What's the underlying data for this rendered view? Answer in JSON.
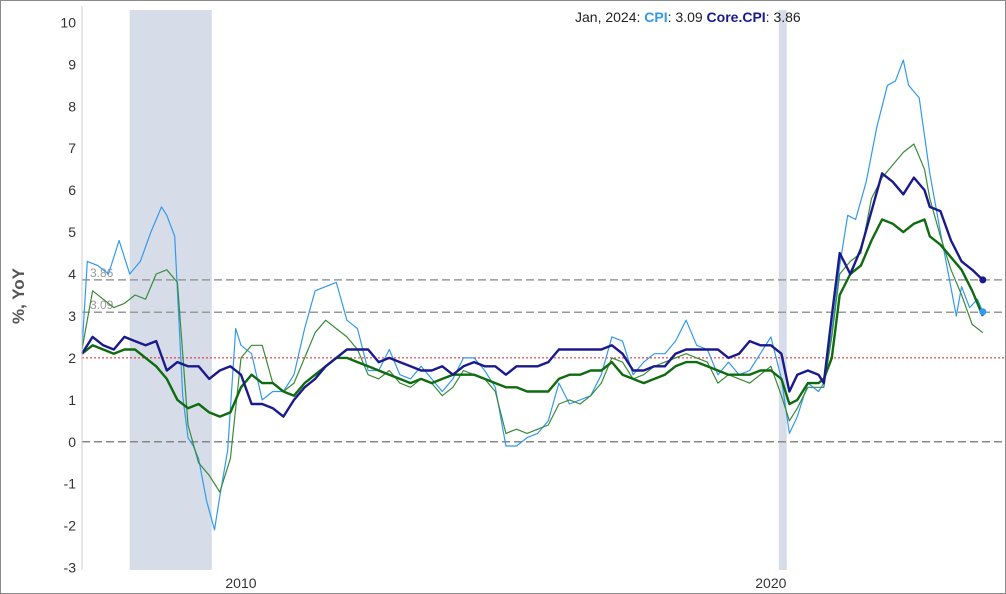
{
  "readout": {
    "date": "Jan, 2024",
    "cpi_name": "CPI",
    "cpi_value": "3.09",
    "core_name": "Core.CPI",
    "core_value": "3.86"
  },
  "colors": {
    "cpi": "#3399ee",
    "core_cpi": "#1a1a8c",
    "series3": "#3a8a3a",
    "series4": "#0f6b0f",
    "recession": "#d6dde8",
    "target": "#dd2222",
    "reference": "#999999"
  },
  "chart_data": {
    "type": "line",
    "title": "",
    "xlabel": "",
    "ylabel": "%, YoY",
    "xlim": [
      2007.0,
      2024.4
    ],
    "ylim": [
      -3.2,
      10.2
    ],
    "yticks": [
      "-3",
      "-2",
      "-1",
      "0",
      "1",
      "2",
      "3",
      "4",
      "5",
      "6",
      "7",
      "8",
      "9",
      "10"
    ],
    "xticks": [
      {
        "value": 2010,
        "label": "2010"
      },
      {
        "value": 2020,
        "label": "2020"
      }
    ],
    "recessions": [
      [
        2007.9,
        2009.45
      ],
      [
        2020.15,
        2020.3
      ]
    ],
    "target_line": 2,
    "reference_lines": [
      {
        "value": 3.86,
        "label": "3.86"
      },
      {
        "value": 3.09,
        "label": "3.09"
      }
    ],
    "series": [
      {
        "name": "CPI",
        "x": [
          2007.0,
          2007.1,
          2007.3,
          2007.5,
          2007.7,
          2007.9,
          2008.1,
          2008.3,
          2008.5,
          2008.6,
          2008.75,
          2008.9,
          2009.0,
          2009.1,
          2009.2,
          2009.35,
          2009.5,
          2009.6,
          2009.75,
          2009.9,
          2010.0,
          2010.2,
          2010.4,
          2010.6,
          2010.8,
          2011.0,
          2011.2,
          2011.4,
          2011.6,
          2011.8,
          2012.0,
          2012.2,
          2012.4,
          2012.6,
          2012.8,
          2013.0,
          2013.2,
          2013.4,
          2013.6,
          2013.8,
          2014.0,
          2014.2,
          2014.4,
          2014.6,
          2014.8,
          2015.0,
          2015.2,
          2015.4,
          2015.6,
          2015.8,
          2016.0,
          2016.2,
          2016.4,
          2016.6,
          2016.8,
          2017.0,
          2017.2,
          2017.4,
          2017.6,
          2017.8,
          2018.0,
          2018.2,
          2018.4,
          2018.6,
          2018.8,
          2019.0,
          2019.2,
          2019.4,
          2019.6,
          2019.8,
          2020.0,
          2020.2,
          2020.35,
          2020.5,
          2020.7,
          2020.9,
          2021.0,
          2021.15,
          2021.3,
          2021.45,
          2021.6,
          2021.8,
          2022.0,
          2022.2,
          2022.35,
          2022.5,
          2022.6,
          2022.8,
          2023.0,
          2023.2,
          2023.35,
          2023.5,
          2023.6,
          2023.75,
          2023.9,
          2024.0
        ],
        "values": [
          2.2,
          4.3,
          4.2,
          4.0,
          4.8,
          4.0,
          4.3,
          5.0,
          5.6,
          5.4,
          4.9,
          1.1,
          0.1,
          -0.1,
          -0.4,
          -1.4,
          -2.1,
          -1.3,
          -0.2,
          2.7,
          2.3,
          2.1,
          1.0,
          1.2,
          1.2,
          1.6,
          2.7,
          3.6,
          3.7,
          3.8,
          2.9,
          2.7,
          1.7,
          1.7,
          2.2,
          1.6,
          1.5,
          1.8,
          1.5,
          1.2,
          1.5,
          2.0,
          2.0,
          1.7,
          1.3,
          -0.1,
          -0.1,
          0.1,
          0.2,
          0.5,
          1.4,
          0.9,
          1.0,
          1.1,
          1.6,
          2.5,
          2.4,
          1.6,
          1.9,
          2.1,
          2.1,
          2.4,
          2.9,
          2.3,
          2.2,
          1.6,
          1.9,
          1.6,
          1.7,
          2.1,
          2.5,
          1.5,
          0.2,
          0.6,
          1.4,
          1.2,
          1.4,
          2.6,
          4.2,
          5.4,
          5.3,
          6.2,
          7.5,
          8.5,
          8.6,
          9.1,
          8.5,
          8.2,
          6.4,
          5.0,
          4.0,
          3.0,
          3.7,
          3.2,
          3.4,
          3.1
        ]
      },
      {
        "name": "Core.CPI",
        "x": [
          2007.0,
          2007.2,
          2007.4,
          2007.6,
          2007.8,
          2008.0,
          2008.2,
          2008.4,
          2008.6,
          2008.8,
          2009.0,
          2009.2,
          2009.4,
          2009.6,
          2009.8,
          2010.0,
          2010.2,
          2010.4,
          2010.6,
          2010.8,
          2011.0,
          2011.2,
          2011.4,
          2011.6,
          2011.8,
          2012.0,
          2012.2,
          2012.4,
          2012.6,
          2012.8,
          2013.0,
          2013.2,
          2013.4,
          2013.6,
          2013.8,
          2014.0,
          2014.2,
          2014.4,
          2014.6,
          2014.8,
          2015.0,
          2015.2,
          2015.4,
          2015.6,
          2015.8,
          2016.0,
          2016.2,
          2016.4,
          2016.6,
          2016.8,
          2017.0,
          2017.2,
          2017.4,
          2017.6,
          2017.8,
          2018.0,
          2018.2,
          2018.4,
          2018.6,
          2018.8,
          2019.0,
          2019.2,
          2019.4,
          2019.6,
          2019.8,
          2020.0,
          2020.2,
          2020.35,
          2020.5,
          2020.7,
          2020.9,
          2021.0,
          2021.15,
          2021.3,
          2021.5,
          2021.7,
          2021.9,
          2022.1,
          2022.3,
          2022.5,
          2022.7,
          2022.9,
          2023.0,
          2023.2,
          2023.4,
          2023.6,
          2023.8,
          2024.0
        ],
        "values": [
          2.1,
          2.5,
          2.3,
          2.2,
          2.5,
          2.4,
          2.3,
          2.4,
          1.7,
          1.9,
          1.8,
          1.8,
          1.5,
          1.7,
          1.8,
          1.6,
          0.9,
          0.9,
          0.8,
          0.6,
          1.0,
          1.3,
          1.5,
          1.8,
          2.0,
          2.2,
          2.2,
          2.2,
          1.9,
          2.0,
          1.9,
          1.8,
          1.7,
          1.7,
          1.8,
          1.6,
          1.8,
          1.9,
          1.8,
          1.8,
          1.6,
          1.8,
          1.8,
          1.8,
          1.9,
          2.2,
          2.2,
          2.2,
          2.2,
          2.2,
          2.3,
          2.1,
          1.7,
          1.7,
          1.8,
          1.8,
          2.1,
          2.2,
          2.2,
          2.2,
          2.2,
          2.0,
          2.1,
          2.4,
          2.3,
          2.3,
          2.1,
          1.2,
          1.6,
          1.7,
          1.6,
          1.4,
          3.0,
          4.5,
          4.0,
          4.6,
          5.5,
          6.4,
          6.2,
          5.9,
          6.3,
          6.0,
          5.6,
          5.5,
          4.8,
          4.3,
          4.1,
          3.86
        ]
      },
      {
        "name": "",
        "x": [
          2007.0,
          2007.2,
          2007.4,
          2007.6,
          2007.8,
          2008.0,
          2008.2,
          2008.4,
          2008.6,
          2008.8,
          2009.0,
          2009.2,
          2009.4,
          2009.6,
          2009.8,
          2010.0,
          2010.2,
          2010.4,
          2010.6,
          2010.8,
          2011.0,
          2011.2,
          2011.4,
          2011.6,
          2011.8,
          2012.0,
          2012.2,
          2012.4,
          2012.6,
          2012.8,
          2013.0,
          2013.2,
          2013.4,
          2013.6,
          2013.8,
          2014.0,
          2014.2,
          2014.4,
          2014.6,
          2014.8,
          2015.0,
          2015.2,
          2015.4,
          2015.6,
          2015.8,
          2016.0,
          2016.2,
          2016.4,
          2016.6,
          2016.8,
          2017.0,
          2017.2,
          2017.4,
          2017.6,
          2017.8,
          2018.0,
          2018.2,
          2018.4,
          2018.6,
          2018.8,
          2019.0,
          2019.2,
          2019.4,
          2019.6,
          2019.8,
          2020.0,
          2020.2,
          2020.35,
          2020.5,
          2020.7,
          2020.9,
          2021.0,
          2021.15,
          2021.3,
          2021.5,
          2021.7,
          2021.9,
          2022.1,
          2022.3,
          2022.5,
          2022.7,
          2022.9,
          2023.0,
          2023.2,
          2023.4,
          2023.6,
          2023.8,
          2024.0
        ],
        "values": [
          2.2,
          3.6,
          3.4,
          3.2,
          3.3,
          3.5,
          3.4,
          4.0,
          4.1,
          3.8,
          0.4,
          -0.5,
          -0.8,
          -1.2,
          -0.4,
          2.0,
          2.3,
          2.3,
          1.4,
          1.2,
          1.4,
          2.0,
          2.6,
          2.9,
          2.7,
          2.5,
          2.2,
          1.6,
          1.5,
          1.7,
          1.4,
          1.3,
          1.5,
          1.4,
          1.1,
          1.3,
          1.7,
          1.6,
          1.5,
          1.2,
          0.2,
          0.3,
          0.2,
          0.3,
          0.4,
          0.9,
          1.0,
          0.9,
          1.1,
          1.4,
          2.0,
          1.9,
          1.5,
          1.6,
          1.8,
          1.9,
          2.0,
          2.1,
          2.0,
          1.9,
          1.4,
          1.6,
          1.5,
          1.4,
          1.6,
          1.8,
          1.1,
          0.5,
          0.8,
          1.3,
          1.3,
          1.3,
          2.5,
          4.0,
          4.3,
          4.5,
          5.8,
          6.3,
          6.6,
          6.9,
          7.1,
          6.5,
          5.8,
          4.9,
          4.1,
          3.5,
          2.8,
          2.6
        ]
      },
      {
        "name": "",
        "x": [
          2007.0,
          2007.2,
          2007.4,
          2007.6,
          2007.8,
          2008.0,
          2008.2,
          2008.4,
          2008.6,
          2008.8,
          2009.0,
          2009.2,
          2009.4,
          2009.6,
          2009.8,
          2010.0,
          2010.2,
          2010.4,
          2010.6,
          2010.8,
          2011.0,
          2011.2,
          2011.4,
          2011.6,
          2011.8,
          2012.0,
          2012.2,
          2012.4,
          2012.6,
          2012.8,
          2013.0,
          2013.2,
          2013.4,
          2013.6,
          2013.8,
          2014.0,
          2014.2,
          2014.4,
          2014.6,
          2014.8,
          2015.0,
          2015.2,
          2015.4,
          2015.6,
          2015.8,
          2016.0,
          2016.2,
          2016.4,
          2016.6,
          2016.8,
          2017.0,
          2017.2,
          2017.4,
          2017.6,
          2017.8,
          2018.0,
          2018.2,
          2018.4,
          2018.6,
          2018.8,
          2019.0,
          2019.2,
          2019.4,
          2019.6,
          2019.8,
          2020.0,
          2020.2,
          2020.35,
          2020.5,
          2020.7,
          2020.9,
          2021.0,
          2021.15,
          2021.3,
          2021.5,
          2021.7,
          2021.9,
          2022.1,
          2022.3,
          2022.5,
          2022.7,
          2022.9,
          2023.0,
          2023.2,
          2023.4,
          2023.6,
          2023.8,
          2024.0
        ],
        "values": [
          2.1,
          2.3,
          2.2,
          2.1,
          2.2,
          2.2,
          2.0,
          1.8,
          1.5,
          1.0,
          0.8,
          0.9,
          0.7,
          0.6,
          0.7,
          1.3,
          1.6,
          1.4,
          1.4,
          1.2,
          1.1,
          1.4,
          1.6,
          1.8,
          2.0,
          2.0,
          1.9,
          1.8,
          1.7,
          1.6,
          1.5,
          1.4,
          1.5,
          1.4,
          1.5,
          1.6,
          1.6,
          1.6,
          1.5,
          1.4,
          1.3,
          1.3,
          1.2,
          1.2,
          1.2,
          1.5,
          1.6,
          1.6,
          1.7,
          1.7,
          1.9,
          1.6,
          1.5,
          1.4,
          1.5,
          1.6,
          1.8,
          1.9,
          1.9,
          1.8,
          1.7,
          1.6,
          1.6,
          1.6,
          1.7,
          1.7,
          1.5,
          0.9,
          1.0,
          1.4,
          1.4,
          1.5,
          2.0,
          3.5,
          4.0,
          4.2,
          4.8,
          5.3,
          5.2,
          5.0,
          5.2,
          5.3,
          4.9,
          4.7,
          4.4,
          4.1,
          3.6,
          3.0
        ]
      }
    ]
  }
}
